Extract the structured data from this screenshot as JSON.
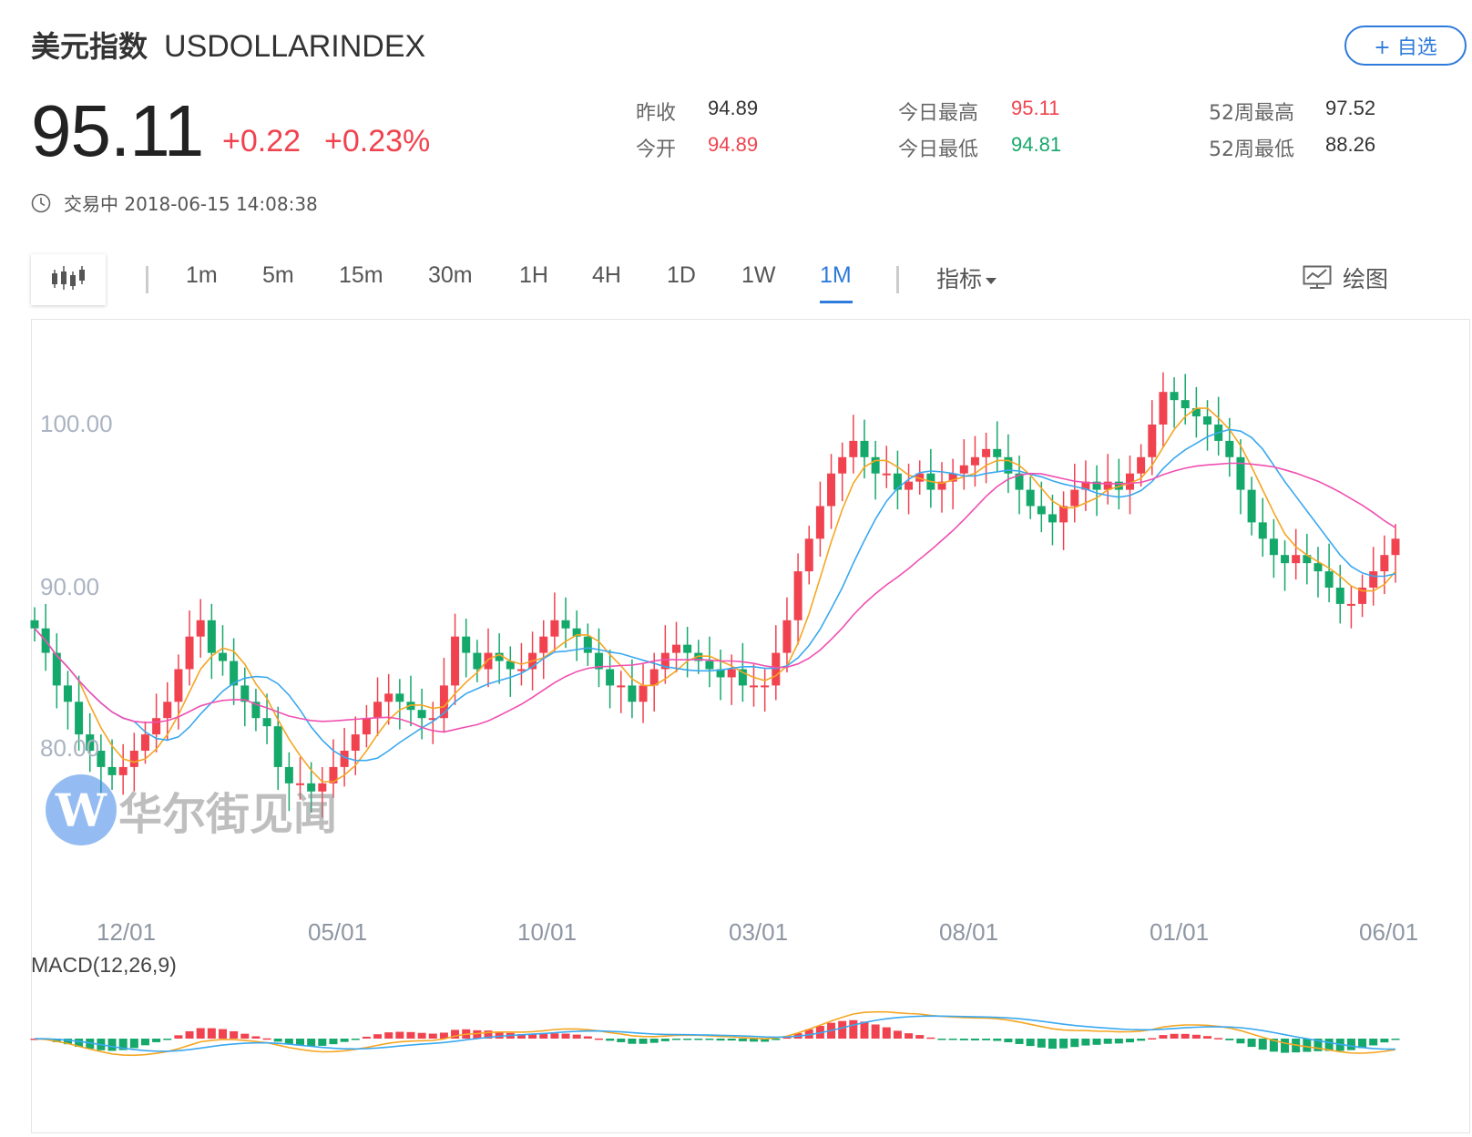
{
  "header": {
    "name_cn": "美元指数",
    "symbol": "USDOLLARINDEX",
    "fav_label": "+ 自选"
  },
  "quote": {
    "price": "95.11",
    "change": "+0.22",
    "change_pct": "+0.23%"
  },
  "stats": {
    "prev_close_label": "昨收",
    "prev_close": "94.89",
    "open_label": "今开",
    "open": "94.89",
    "high_label": "今日最高",
    "high": "95.11",
    "low_label": "今日最低",
    "low": "94.81",
    "wk52_high_label": "52周最高",
    "wk52_high": "97.52",
    "wk52_low_label": "52周最低",
    "wk52_low": "88.26"
  },
  "status": {
    "text": "交易中 2018-06-15 14:08:38"
  },
  "toolbar": {
    "timeframes": [
      "1m",
      "5m",
      "15m",
      "30m",
      "1H",
      "4H",
      "1D",
      "1W",
      "1M"
    ],
    "active_timeframe": "1M",
    "indicator_label": "指标",
    "draw_label": "绘图"
  },
  "chart": {
    "y_labels": [
      "100.00",
      "90.00",
      "80.00"
    ],
    "x_labels": [
      "12/01",
      "05/01",
      "10/01",
      "03/01",
      "08/01",
      "01/01",
      "06/01"
    ],
    "macd_label": "MACD(12,26,9)",
    "watermark": "华尔街见闻",
    "colors": {
      "up": "#f0434f",
      "down": "#15a86b",
      "ma_fast": "#f5a623",
      "ma_mid": "#3aa8f0",
      "ma_slow": "#f04fb0",
      "accent": "#2f7bdb"
    }
  },
  "chart_data": {
    "type": "candlestick",
    "series": [
      "MA fast",
      "MA mid",
      "MA slow"
    ],
    "y_ticks": [
      100,
      90,
      80
    ],
    "x_ticks": [
      "12/01",
      "05/01",
      "10/01",
      "03/01",
      "08/01",
      "01/01",
      "06/01"
    ]
  }
}
